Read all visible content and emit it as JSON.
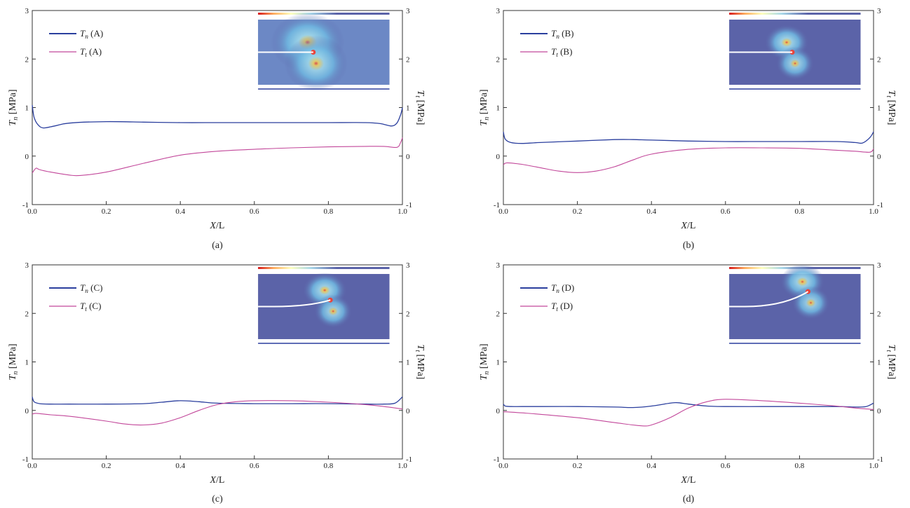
{
  "figure": {
    "panels": [
      {
        "caption": "(a)",
        "xlabel": "X/L",
        "ylabel_left": "T_n [MPa]",
        "ylabel_right": "T_t [MPa]"
      },
      {
        "caption": "(b)",
        "xlabel": "X/L",
        "ylabel_left": "T_n [MPa]",
        "ylabel_right": "T_t [MPa]"
      },
      {
        "caption": "(c)",
        "xlabel": "X/L",
        "ylabel_left": "T_n [MPa]",
        "ylabel_right": "T_t [MPa]"
      },
      {
        "caption": "(d)",
        "xlabel": "X/L",
        "ylabel_left": "T_n [MPa]",
        "ylabel_right": "T_t [MPa]"
      }
    ],
    "colors": {
      "normal": "#2b3f9e",
      "tangential": "#c2479a",
      "inset_bg": "#5b63a8"
    }
  },
  "chart_data": [
    {
      "type": "line",
      "caption": "(a)",
      "xlabel": "X/L",
      "ylabel": "T_n [MPa]",
      "ylabel_right": "T_t [MPa]",
      "xlim": [
        0,
        1
      ],
      "ylim": [
        -1,
        3
      ],
      "ylim_right": [
        -1,
        3
      ],
      "xticks": [
        "0.0",
        "0.2",
        "0.4",
        "0.6",
        "0.8",
        "1.0"
      ],
      "yticks": [
        "-1",
        "0",
        "1",
        "2",
        "3"
      ],
      "legend": "top-left",
      "grid": false,
      "series": [
        {
          "name": "T_n (A)",
          "x": [
            0,
            0.005,
            0.015,
            0.03,
            0.06,
            0.1,
            0.2,
            0.3,
            0.4,
            0.5,
            0.6,
            0.7,
            0.8,
            0.9,
            0.94,
            0.97,
            0.985,
            0.995,
            1.0
          ],
          "y": [
            1.05,
            0.8,
            0.65,
            0.58,
            0.62,
            0.68,
            0.71,
            0.7,
            0.69,
            0.69,
            0.69,
            0.69,
            0.69,
            0.69,
            0.67,
            0.62,
            0.68,
            0.85,
            1.0
          ]
        },
        {
          "name": "T_t (A)",
          "x": [
            0,
            0.01,
            0.02,
            0.05,
            0.1,
            0.13,
            0.2,
            0.3,
            0.4,
            0.5,
            0.6,
            0.7,
            0.8,
            0.9,
            0.95,
            0.985,
            0.995,
            1.0
          ],
          "y": [
            -0.35,
            -0.25,
            -0.28,
            -0.33,
            -0.39,
            -0.4,
            -0.33,
            -0.15,
            0.02,
            0.1,
            0.14,
            0.17,
            0.19,
            0.2,
            0.2,
            0.18,
            0.28,
            0.38
          ]
        }
      ],
      "inset": {
        "crack_end": [
          0.42,
          0.5
        ],
        "crack_path": "straight"
      }
    },
    {
      "type": "line",
      "caption": "(b)",
      "xlabel": "X/L",
      "ylabel": "T_n [MPa]",
      "ylabel_right": "T_t [MPa]",
      "xlim": [
        0,
        1
      ],
      "ylim": [
        -1,
        3
      ],
      "ylim_right": [
        -1,
        3
      ],
      "xticks": [
        "0.0",
        "0.2",
        "0.4",
        "0.6",
        "0.8",
        "1.0"
      ],
      "yticks": [
        "-1",
        "0",
        "1",
        "2",
        "3"
      ],
      "legend": "top-left",
      "grid": false,
      "series": [
        {
          "name": "T_n (B)",
          "x": [
            0,
            0.005,
            0.02,
            0.05,
            0.1,
            0.2,
            0.3,
            0.35,
            0.4,
            0.5,
            0.6,
            0.7,
            0.8,
            0.9,
            0.95,
            0.97,
            0.99,
            1.0
          ],
          "y": [
            0.5,
            0.35,
            0.28,
            0.26,
            0.28,
            0.31,
            0.34,
            0.34,
            0.33,
            0.31,
            0.3,
            0.3,
            0.3,
            0.3,
            0.28,
            0.27,
            0.38,
            0.5
          ]
        },
        {
          "name": "T_t (B)",
          "x": [
            0,
            0.01,
            0.05,
            0.1,
            0.15,
            0.2,
            0.25,
            0.3,
            0.35,
            0.4,
            0.5,
            0.6,
            0.7,
            0.8,
            0.9,
            0.95,
            0.99,
            1.0
          ],
          "y": [
            -0.18,
            -0.14,
            -0.17,
            -0.24,
            -0.31,
            -0.34,
            -0.31,
            -0.22,
            -0.08,
            0.04,
            0.14,
            0.17,
            0.17,
            0.16,
            0.12,
            0.1,
            0.08,
            0.15
          ]
        }
      ],
      "inset": {
        "crack_end": [
          0.48,
          0.5
        ],
        "crack_path": "curved"
      }
    },
    {
      "type": "line",
      "caption": "(c)",
      "xlabel": "X/L",
      "ylabel": "T_n [MPa]",
      "ylabel_right": "T_t [MPa]",
      "xlim": [
        0,
        1
      ],
      "ylim": [
        -1,
        3
      ],
      "ylim_right": [
        -1,
        3
      ],
      "xticks": [
        "0.0",
        "0.2",
        "0.4",
        "0.6",
        "0.8",
        "1.0"
      ],
      "yticks": [
        "-1",
        "0",
        "1",
        "2",
        "3"
      ],
      "legend": "top-left",
      "grid": false,
      "series": [
        {
          "name": "T_n (C)",
          "x": [
            0,
            0.005,
            0.02,
            0.05,
            0.1,
            0.2,
            0.3,
            0.35,
            0.4,
            0.45,
            0.5,
            0.6,
            0.7,
            0.8,
            0.9,
            0.95,
            0.98,
            1.0
          ],
          "y": [
            0.28,
            0.18,
            0.14,
            0.13,
            0.13,
            0.13,
            0.14,
            0.17,
            0.2,
            0.18,
            0.15,
            0.14,
            0.14,
            0.14,
            0.13,
            0.13,
            0.15,
            0.28
          ]
        },
        {
          "name": "T_t (C)",
          "x": [
            0,
            0.01,
            0.05,
            0.1,
            0.2,
            0.25,
            0.3,
            0.35,
            0.4,
            0.45,
            0.5,
            0.55,
            0.6,
            0.7,
            0.8,
            0.9,
            0.95,
            1.0
          ],
          "y": [
            -0.08,
            -0.06,
            -0.09,
            -0.12,
            -0.22,
            -0.28,
            -0.3,
            -0.26,
            -0.15,
            0.0,
            0.12,
            0.18,
            0.2,
            0.2,
            0.17,
            0.12,
            0.08,
            0.03
          ]
        }
      ],
      "inset": {
        "crack_end": [
          0.55,
          0.4
        ],
        "crack_path": "curved"
      }
    },
    {
      "type": "line",
      "caption": "(d)",
      "xlabel": "X/L",
      "ylabel": "T_n [MPa]",
      "ylabel_right": "T_t [MPa]",
      "xlim": [
        0,
        1
      ],
      "ylim": [
        -1,
        3
      ],
      "ylim_right": [
        -1,
        3
      ],
      "xticks": [
        "0.0",
        "0.2",
        "0.4",
        "0.6",
        "0.8",
        "1.0"
      ],
      "yticks": [
        "-1",
        "0",
        "1",
        "2",
        "3"
      ],
      "legend": "top-left",
      "grid": false,
      "series": [
        {
          "name": "T_n (D)",
          "x": [
            0,
            0.005,
            0.02,
            0.05,
            0.1,
            0.2,
            0.3,
            0.35,
            0.4,
            0.45,
            0.47,
            0.5,
            0.55,
            0.6,
            0.7,
            0.8,
            0.9,
            0.95,
            0.98,
            1.0
          ],
          "y": [
            0.13,
            0.09,
            0.08,
            0.08,
            0.08,
            0.08,
            0.07,
            0.06,
            0.09,
            0.15,
            0.16,
            0.13,
            0.09,
            0.08,
            0.08,
            0.08,
            0.08,
            0.07,
            0.08,
            0.15
          ]
        },
        {
          "name": "T_t (D)",
          "x": [
            0,
            0.01,
            0.05,
            0.1,
            0.2,
            0.3,
            0.35,
            0.38,
            0.4,
            0.45,
            0.5,
            0.55,
            0.6,
            0.7,
            0.8,
            0.9,
            0.95,
            1.0
          ],
          "y": [
            -0.03,
            -0.03,
            -0.05,
            -0.08,
            -0.15,
            -0.25,
            -0.3,
            -0.32,
            -0.3,
            -0.15,
            0.05,
            0.18,
            0.23,
            0.2,
            0.15,
            0.09,
            0.05,
            0.02
          ]
        }
      ],
      "inset": {
        "crack_end": [
          0.6,
          0.27
        ],
        "crack_path": "curved"
      }
    }
  ]
}
